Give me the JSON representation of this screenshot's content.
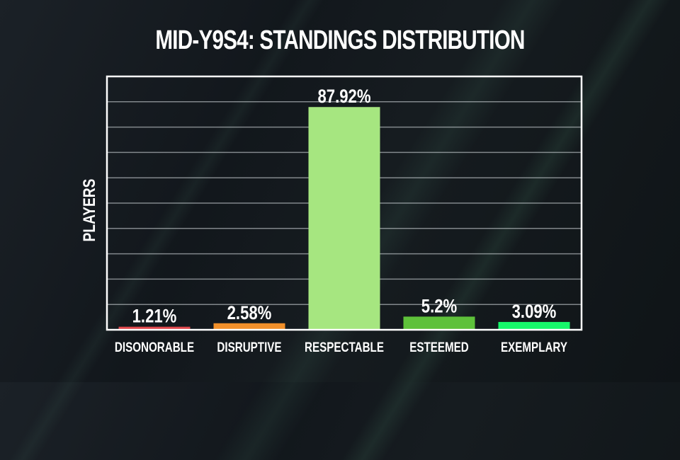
{
  "chart_data": {
    "type": "bar",
    "title": "MID-Y9S4: STANDINGS DISTRIBUTION",
    "xlabel": "",
    "ylabel": "PLAYERS",
    "ylim": [
      0,
      100
    ],
    "grid": true,
    "gridline_step": 10,
    "categories": [
      "DISONORABLE",
      "DISRUPTIVE",
      "RESPECTABLE",
      "ESTEEMED",
      "EXEMPLARY"
    ],
    "values": [
      1.21,
      2.58,
      87.92,
      5.2,
      3.09
    ],
    "value_labels": [
      "1.21%",
      "2.58%",
      "87.92%",
      "5.2%",
      "3.09%"
    ],
    "colors": [
      "#e0474c",
      "#f2902a",
      "#a6e680",
      "#5ec13a",
      "#16f76a"
    ]
  }
}
